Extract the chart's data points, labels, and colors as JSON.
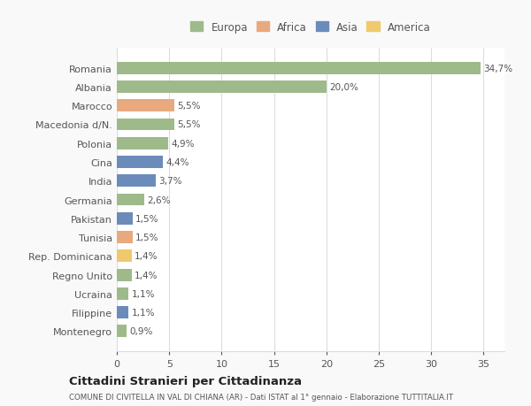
{
  "categories": [
    "Romania",
    "Albania",
    "Marocco",
    "Macedonia d/N.",
    "Polonia",
    "Cina",
    "India",
    "Germania",
    "Pakistan",
    "Tunisia",
    "Rep. Dominicana",
    "Regno Unito",
    "Ucraina",
    "Filippine",
    "Montenegro"
  ],
  "values": [
    34.7,
    20.0,
    5.5,
    5.5,
    4.9,
    4.4,
    3.7,
    2.6,
    1.5,
    1.5,
    1.4,
    1.4,
    1.1,
    1.1,
    0.9
  ],
  "labels": [
    "34,7%",
    "20,0%",
    "5,5%",
    "5,5%",
    "4,9%",
    "4,4%",
    "3,7%",
    "2,6%",
    "1,5%",
    "1,5%",
    "1,4%",
    "1,4%",
    "1,1%",
    "1,1%",
    "0,9%"
  ],
  "colors": [
    "#9eba8a",
    "#9eba8a",
    "#e8a97e",
    "#9eba8a",
    "#9eba8a",
    "#6b8cba",
    "#6b8cba",
    "#9eba8a",
    "#6b8cba",
    "#e8a97e",
    "#f0c96e",
    "#9eba8a",
    "#9eba8a",
    "#6b8cba",
    "#9eba8a"
  ],
  "continent_colors": {
    "Europa": "#9eba8a",
    "Africa": "#e8a97e",
    "Asia": "#6b8cba",
    "America": "#f0c96e"
  },
  "legend_labels": [
    "Europa",
    "Africa",
    "Asia",
    "America"
  ],
  "xlim": [
    0,
    37
  ],
  "xticks": [
    0,
    5,
    10,
    15,
    20,
    25,
    30,
    35
  ],
  "title": "Cittadini Stranieri per Cittadinanza",
  "subtitle": "COMUNE DI CIVITELLA IN VAL DI CHIANA (AR) - Dati ISTAT al 1° gennaio - Elaborazione TUTTITALIA.IT",
  "background_color": "#f9f9f9",
  "bar_background": "#ffffff",
  "grid_color": "#dddddd",
  "text_color": "#555555",
  "bar_height": 0.65
}
